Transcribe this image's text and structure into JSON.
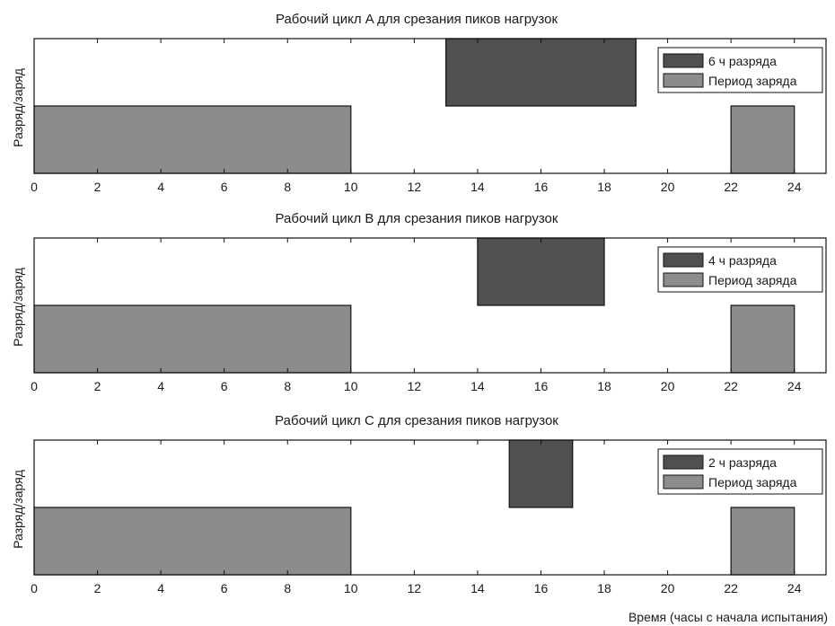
{
  "chart_data": [
    {
      "type": "bar",
      "title": "Рабочий цикл A для срезания пиков нагрузок",
      "ylabel": "Разряд/заряд",
      "xlim": [
        0,
        25
      ],
      "xticks": [
        0,
        2,
        4,
        6,
        8,
        10,
        12,
        14,
        16,
        18,
        20,
        22,
        24
      ],
      "grid": false,
      "legend_position": "top-right",
      "series": [
        {
          "name": "6 ч разряда",
          "row": "upper",
          "color": "#505050",
          "intervals": [
            [
              13,
              19
            ]
          ]
        },
        {
          "name": "Период заряда",
          "row": "lower",
          "color": "#8c8c8c",
          "intervals": [
            [
              0,
              10
            ],
            [
              22,
              24
            ]
          ]
        }
      ]
    },
    {
      "type": "bar",
      "title": "Рабочий цикл B для срезания пиков нагрузок",
      "ylabel": "Разряд/заряд",
      "xlim": [
        0,
        25
      ],
      "xticks": [
        0,
        2,
        4,
        6,
        8,
        10,
        12,
        14,
        16,
        18,
        20,
        22,
        24
      ],
      "grid": false,
      "legend_position": "top-right",
      "series": [
        {
          "name": "4 ч разряда",
          "row": "upper",
          "color": "#505050",
          "intervals": [
            [
              14,
              18
            ]
          ]
        },
        {
          "name": "Период заряда",
          "row": "lower",
          "color": "#8c8c8c",
          "intervals": [
            [
              0,
              10
            ],
            [
              22,
              24
            ]
          ]
        }
      ]
    },
    {
      "type": "bar",
      "title": "Рабочий цикл C для срезания пиков нагрузок",
      "ylabel": "Разряд/заряд",
      "xlabel": "Время (часы с начала испытания)",
      "xlim": [
        0,
        25
      ],
      "xticks": [
        0,
        2,
        4,
        6,
        8,
        10,
        12,
        14,
        16,
        18,
        20,
        22,
        24
      ],
      "grid": false,
      "legend_position": "top-right",
      "series": [
        {
          "name": "2 ч разряда",
          "row": "upper",
          "color": "#505050",
          "intervals": [
            [
              15,
              17
            ]
          ]
        },
        {
          "name": "Период заряда",
          "row": "lower",
          "color": "#8c8c8c",
          "intervals": [
            [
              0,
              10
            ],
            [
              22,
              24
            ]
          ]
        }
      ]
    }
  ]
}
